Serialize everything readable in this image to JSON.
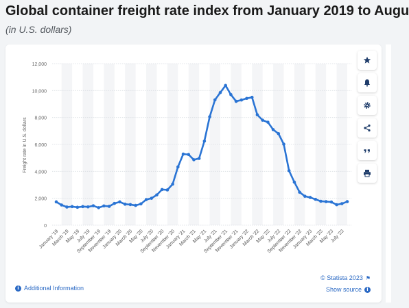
{
  "header": {
    "title": "Global container freight rate index from January 2019 to Augu",
    "subtitle": "(in U.S. dollars)"
  },
  "toolbar": {
    "buttons": [
      {
        "name": "star-icon"
      },
      {
        "name": "bell-icon"
      },
      {
        "name": "gear-icon"
      },
      {
        "name": "share-icon"
      },
      {
        "name": "quote-icon"
      },
      {
        "name": "print-icon"
      }
    ]
  },
  "footer": {
    "additional_info": "Additional Information",
    "credit": "© Statista 2023",
    "show_source": "Show source"
  },
  "colors": {
    "line": "#2a74d4",
    "link": "#2a69c4",
    "stripe": "#f4f5f7"
  },
  "chart_data": {
    "type": "line",
    "ylabel": "Freight rate in U.S. dollars",
    "ylim": [
      0,
      12000
    ],
    "yticks": [
      0,
      2000,
      4000,
      6000,
      8000,
      10000,
      12000
    ],
    "ytick_labels": [
      "0",
      "2,000",
      "4,000",
      "6,000",
      "8,000",
      "10,000",
      "12,000"
    ],
    "xtick_labels": [
      "January '19",
      "March '19",
      "May '19",
      "July '19",
      "September '19",
      "November '19",
      "January '20",
      "March '20",
      "May '20",
      "July '20",
      "September '20",
      "November '20",
      "January '21",
      "March '21",
      "May '21",
      "July '21",
      "September '21",
      "November '21",
      "January '22",
      "March '22",
      "May '22",
      "July '22",
      "September '22",
      "November '22",
      "January '23",
      "March '23",
      "May '23",
      "July '23"
    ],
    "x": [
      "Jan 2019",
      "Feb 2019",
      "Mar 2019",
      "Apr 2019",
      "May 2019",
      "Jun 2019",
      "Jul 2019",
      "Aug 2019",
      "Sep 2019",
      "Oct 2019",
      "Nov 2019",
      "Dec 2019",
      "Jan 2020",
      "Feb 2020",
      "Mar 2020",
      "Apr 2020",
      "May 2020",
      "Jun 2020",
      "Jul 2020",
      "Aug 2020",
      "Sep 2020",
      "Oct 2020",
      "Nov 2020",
      "Dec 2020",
      "Jan 2021",
      "Feb 2021",
      "Mar 2021",
      "Apr 2021",
      "May 2021",
      "Jun 2021",
      "Jul 2021",
      "Aug 2021",
      "Sep 2021",
      "Oct 2021",
      "Nov 2021",
      "Dec 2021",
      "Jan 2022",
      "Feb 2022",
      "Mar 2022",
      "Apr 2022",
      "May 2022",
      "Jun 2022",
      "Jul 2022",
      "Aug 2022",
      "Sep 2022",
      "Oct 2022",
      "Nov 2022",
      "Dec 2022",
      "Jan 2023",
      "Feb 2023",
      "Mar 2023",
      "Apr 2023",
      "May 2023",
      "Jun 2023",
      "Jul 2023",
      "Aug 2023"
    ],
    "series": [
      {
        "values": [
          1730,
          1500,
          1350,
          1380,
          1330,
          1380,
          1360,
          1440,
          1300,
          1430,
          1400,
          1620,
          1730,
          1560,
          1530,
          1470,
          1580,
          1900,
          2000,
          2250,
          2650,
          2620,
          3050,
          4330,
          5280,
          5250,
          4860,
          4960,
          6250,
          8050,
          9310,
          9850,
          10380,
          9700,
          9200,
          9300,
          9420,
          9500,
          8200,
          7800,
          7650,
          7100,
          6800,
          6020,
          4050,
          3200,
          2450,
          2150,
          2060,
          1920,
          1780,
          1750,
          1720,
          1520,
          1600,
          1750
        ]
      }
    ]
  }
}
